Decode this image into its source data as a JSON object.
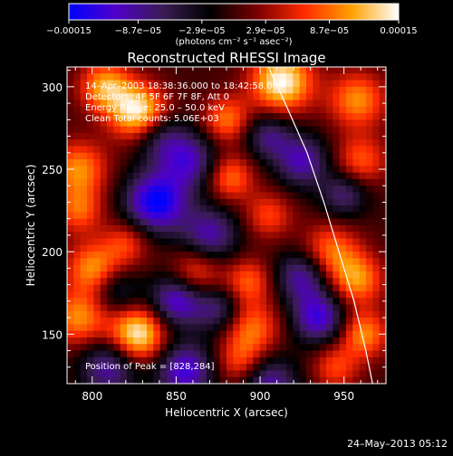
{
  "colorbar": {
    "tick_labels": [
      "−0.00015",
      "−8.7e−05",
      "−2.9e−05",
      "2.9e−05",
      "8.7e−05",
      "0.00015"
    ],
    "tick_values": [
      -0.00015,
      -8.7e-05,
      -2.9e-05,
      2.9e-05,
      8.7e-05,
      0.00015
    ],
    "range": [
      -0.00015,
      0.00015
    ],
    "units": "(photons cm⁻² s⁻¹ asec⁻²)",
    "colors": [
      "#0000ff",
      "#5000c8",
      "#3a1c52",
      "#000000",
      "#7a0000",
      "#ff2a00",
      "#ffa000",
      "#ffffff"
    ]
  },
  "info": {
    "time_range": "14–Apr–2003 18:38:36.000 to 18:42:58.000",
    "detectors": "Detectors: 4F 5F 6F 7F 8F, Att 0",
    "energy": "Energy Range: 25.0 – 50.0 keV",
    "clean": "Clean   Total counts: 5.06E+03",
    "peak": "Position of Peak = [828,284]"
  },
  "timestamp": "24–May–2013 05:12",
  "chart_data": {
    "type": "heatmap",
    "title": "Reconstructed RHESSI Image",
    "xlabel": "Heliocentric X (arcsec)",
    "ylabel": "Heliocentric Y (arcsec)",
    "xlim": [
      785,
      975
    ],
    "ylim": [
      120,
      312
    ],
    "xticks": [
      800,
      850,
      900,
      950
    ],
    "yticks": [
      150,
      200,
      250,
      300
    ],
    "limb_line": [
      [
        905,
        312
      ],
      [
        915,
        290
      ],
      [
        928,
        260
      ],
      [
        938,
        230
      ],
      [
        947,
        200
      ],
      [
        956,
        170
      ],
      [
        963,
        140
      ],
      [
        967,
        120
      ]
    ],
    "sources": [
      {
        "x": 828,
        "y": 284,
        "amp": 0.00015,
        "r": 12
      },
      {
        "x": 808,
        "y": 300,
        "amp": 0.00011,
        "r": 11
      },
      {
        "x": 913,
        "y": 303,
        "amp": 0.00015,
        "r": 13
      },
      {
        "x": 880,
        "y": 280,
        "amp": 9e-05,
        "r": 10
      },
      {
        "x": 958,
        "y": 292,
        "amp": 0.0001,
        "r": 12
      },
      {
        "x": 960,
        "y": 255,
        "amp": 8e-05,
        "r": 11
      },
      {
        "x": 882,
        "y": 245,
        "amp": 9e-05,
        "r": 10
      },
      {
        "x": 905,
        "y": 222,
        "amp": 7e-05,
        "r": 10
      },
      {
        "x": 792,
        "y": 250,
        "amp": 0.0001,
        "r": 12
      },
      {
        "x": 792,
        "y": 225,
        "amp": 8e-05,
        "r": 10
      },
      {
        "x": 820,
        "y": 205,
        "amp": 7e-05,
        "r": 10
      },
      {
        "x": 800,
        "y": 190,
        "amp": 0.0001,
        "r": 11
      },
      {
        "x": 862,
        "y": 188,
        "amp": 8e-05,
        "r": 11
      },
      {
        "x": 893,
        "y": 182,
        "amp": 8e-05,
        "r": 10
      },
      {
        "x": 942,
        "y": 200,
        "amp": 9e-05,
        "r": 12
      },
      {
        "x": 958,
        "y": 183,
        "amp": 0.0001,
        "r": 11
      },
      {
        "x": 962,
        "y": 150,
        "amp": 0.0001,
        "r": 10
      },
      {
        "x": 827,
        "y": 150,
        "amp": 0.00015,
        "r": 12
      },
      {
        "x": 792,
        "y": 160,
        "amp": 0.0001,
        "r": 12
      },
      {
        "x": 895,
        "y": 153,
        "amp": 9e-05,
        "r": 12
      },
      {
        "x": 888,
        "y": 132,
        "amp": 7e-05,
        "r": 10
      },
      {
        "x": 945,
        "y": 130,
        "amp": 7e-05,
        "r": 10
      },
      {
        "x": 840,
        "y": 270,
        "amp": -8e-05,
        "r": 11
      },
      {
        "x": 838,
        "y": 230,
        "amp": -0.00015,
        "r": 13
      },
      {
        "x": 858,
        "y": 255,
        "amp": -0.0001,
        "r": 12
      },
      {
        "x": 870,
        "y": 210,
        "amp": -0.0001,
        "r": 12
      },
      {
        "x": 925,
        "y": 255,
        "amp": -0.0001,
        "r": 11
      },
      {
        "x": 925,
        "y": 185,
        "amp": -0.0001,
        "r": 11
      },
      {
        "x": 850,
        "y": 170,
        "amp": -0.00012,
        "r": 11
      },
      {
        "x": 875,
        "y": 165,
        "amp": -8e-05,
        "r": 10
      },
      {
        "x": 810,
        "y": 130,
        "amp": -0.0001,
        "r": 12
      },
      {
        "x": 855,
        "y": 128,
        "amp": -0.00012,
        "r": 12
      },
      {
        "x": 905,
        "y": 120,
        "amp": -0.0001,
        "r": 12
      },
      {
        "x": 935,
        "y": 160,
        "amp": -0.00012,
        "r": 11
      },
      {
        "x": 950,
        "y": 235,
        "amp": -8e-05,
        "r": 10
      },
      {
        "x": 905,
        "y": 270,
        "amp": -8e-05,
        "r": 10
      },
      {
        "x": 815,
        "y": 175,
        "amp": -6e-05,
        "r": 10
      }
    ]
  }
}
